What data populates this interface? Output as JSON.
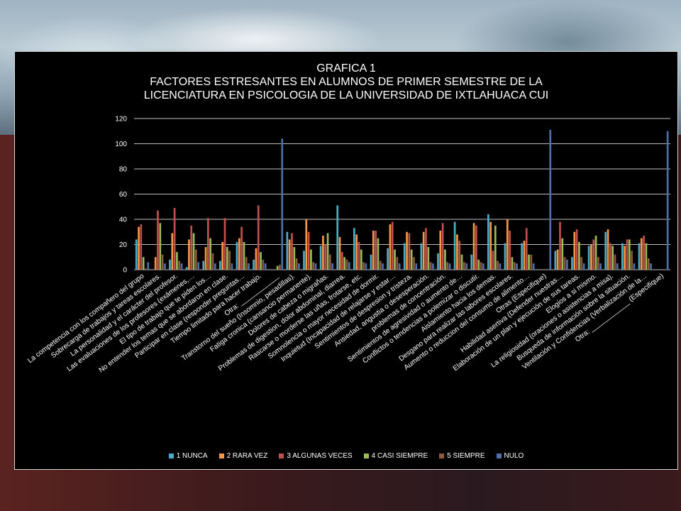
{
  "chart_data": {
    "type": "bar",
    "title_lines": [
      "GRAFICA 1",
      "FACTORES ESTRESANTES EN ALUMNOS DE PRIMER SEMESTRE DE LA",
      "LICENCIATURA EN PSICOLOGIA DE LA UNIVERSIDAD DE IXTLAHUACA CUI"
    ],
    "ylim": [
      0,
      120
    ],
    "yticks": [
      0,
      20,
      40,
      60,
      80,
      100,
      120
    ],
    "grid": true,
    "legend_position": "bottom",
    "categories": [
      "La competencia con los compañero del grupo",
      "Sobrecarga de trabajos y tareas escolares.",
      "La personalidad y el carácter del profesor.",
      "Las evaluaciones de los profesores (exámenes,…",
      "El tipo de trabajo que te piden los…",
      "No entender los temas que se abordaron en clase.",
      "Participar en clase (responder preguntas…",
      "Tiempo limitado para hacer trabajo.",
      "Otra: ____________",
      "Transtorno del sueño (Insomnio, pesadillas).",
      "Fatiga cronica (cansancio permanente).",
      "Dolores de cabeza o migrañas.",
      "Problemas de digestion, dolor abdominal, diarrea.",
      "Rascarse o morderse las uñas, frotarse, etc.",
      "Somnolencia o mayor necesidad de dormir.",
      "Inquietud (Incapacidad de relajarse y estar…",
      "Sentimientos de despresion y tristeza.",
      "Ansiedad, angustia o desesperación.",
      "problemas de concentración.",
      "Sentimientos de agresividad o aumento de…",
      "Conflictos o tendencias a polemizar o discutir.",
      "Aislamiento hacia los demas.",
      "Desgano para realizar las labores escolares.",
      "Aumento o reduccion del consumo de alimento…",
      "Otras (Especifique)",
      "Habilidad asertiva (Defender nuestras…",
      "Elaboración de un plan y ejecución de sus tareas.",
      "Elogios a si mismo.",
      "La religiosidad (oraciones o asistencias a misa).",
      "Busqueda de información sobre la situación.",
      "Ventilación y Confidencias (Verbalización de la…",
      "Otra: ____________ (Especifique)"
    ],
    "series": [
      {
        "name": "1 NUNCA",
        "color": "#4bacc6",
        "values": [
          24,
          0,
          8,
          2,
          7,
          7,
          22,
          8,
          0,
          30,
          15,
          19,
          51,
          33,
          12,
          17,
          21,
          21,
          13,
          38,
          12,
          44,
          21,
          21,
          0,
          15,
          10,
          19,
          30,
          21,
          21,
          0
        ]
      },
      {
        "name": "2 RARA VEZ",
        "color": "#f79646",
        "values": [
          34,
          10,
          29,
          24,
          18,
          22,
          25,
          17,
          0,
          24,
          40,
          27,
          26,
          28,
          31,
          36,
          30,
          30,
          31,
          28,
          37,
          38,
          40,
          23,
          0,
          16,
          30,
          20,
          32,
          19,
          25,
          0
        ]
      },
      {
        "name": "3 ALGUNAS VECES",
        "color": "#c0504d",
        "values": [
          36,
          47,
          49,
          35,
          41,
          41,
          34,
          51,
          0,
          29,
          30,
          20,
          14,
          22,
          31,
          38,
          29,
          33,
          37,
          23,
          35,
          15,
          31,
          33,
          0,
          38,
          32,
          24,
          21,
          24,
          27,
          0
        ]
      },
      {
        "name": "4 CASI SIEMPRE",
        "color": "#9bbb59",
        "values": [
          10,
          37,
          14,
          29,
          25,
          18,
          22,
          14,
          3,
          18,
          16,
          29,
          10,
          16,
          25,
          16,
          16,
          18,
          16,
          12,
          8,
          35,
          10,
          12,
          0,
          25,
          22,
          27,
          19,
          24,
          21,
          0
        ]
      },
      {
        "name": "5 SIEMPRE",
        "color": "#8c5a3c",
        "values": [
          1,
          12,
          7,
          16,
          13,
          15,
          10,
          8,
          4,
          9,
          6,
          12,
          8,
          6,
          7,
          10,
          10,
          6,
          6,
          6,
          6,
          7,
          6,
          12,
          0,
          10,
          10,
          10,
          12,
          15,
          9,
          0
        ]
      },
      {
        "name": "NULO",
        "color": "#4f6fa8",
        "values": [
          6,
          5,
          5,
          6,
          5,
          5,
          5,
          5,
          104,
          5,
          5,
          5,
          6,
          5,
          5,
          5,
          5,
          5,
          5,
          5,
          5,
          5,
          5,
          5,
          111,
          8,
          5,
          5,
          5,
          5,
          5,
          110
        ]
      }
    ]
  }
}
